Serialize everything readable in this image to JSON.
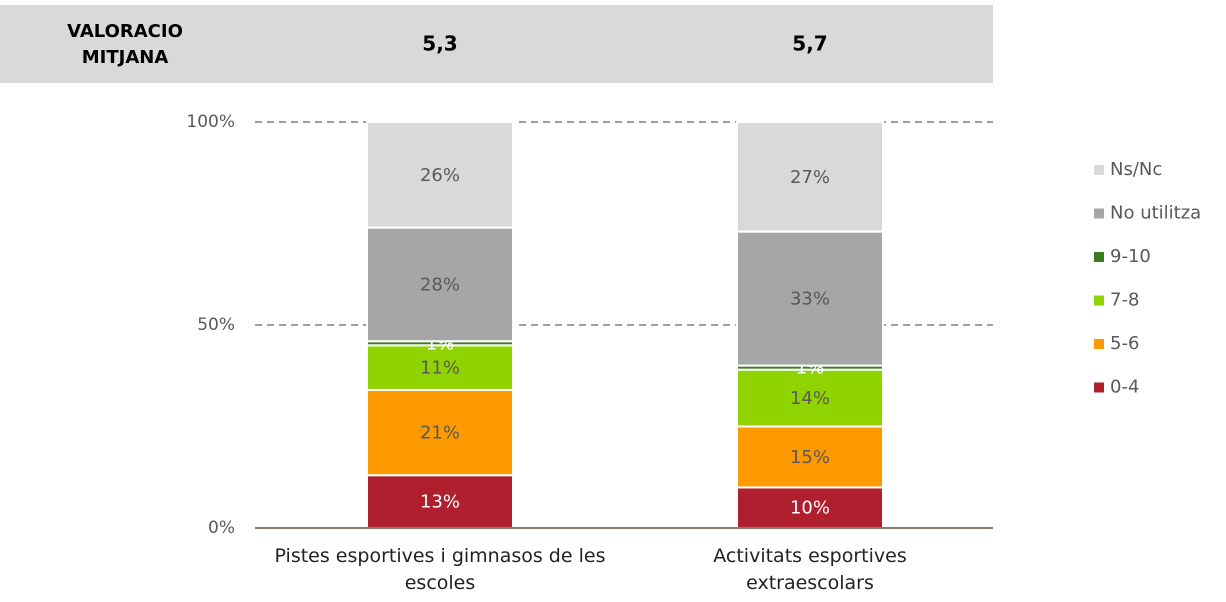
{
  "header": {
    "label": [
      "VALORACIO",
      "MITJANA"
    ],
    "values": [
      "5,3",
      "5,7"
    ]
  },
  "chart_data": {
    "type": "stacked_bar",
    "categories": [
      "Pistes esportives i gimnasos de les escoles",
      "Activitats esportives extraescolars"
    ],
    "series": [
      {
        "name": "0-4",
        "color": "#b01f2e",
        "label_color": "#ffffff",
        "values": [
          13,
          10
        ],
        "value_labels": [
          "13%",
          "10%"
        ]
      },
      {
        "name": "5-6",
        "color": "#ff9900",
        "label_color": "#595959",
        "values": [
          21,
          15
        ],
        "value_labels": [
          "21%",
          "15%"
        ]
      },
      {
        "name": "7-8",
        "color": "#8fd400",
        "label_color": "#595959",
        "values": [
          11,
          14
        ],
        "value_labels": [
          "11%",
          "14%"
        ]
      },
      {
        "name": "9-10",
        "color": "#3a7d22",
        "label_color": "#ffffff",
        "values": [
          1,
          1
        ],
        "value_labels": [
          "1%",
          "1%"
        ]
      },
      {
        "name": "No utilitza",
        "color": "#a6a6a6",
        "label_color": "#595959",
        "values": [
          28,
          33
        ],
        "value_labels": [
          "28%",
          "33%"
        ]
      },
      {
        "name": "Ns/Nc",
        "color": "#d9d9d9",
        "label_color": "#595959",
        "values": [
          26,
          27
        ],
        "value_labels": [
          "26%",
          "27%"
        ]
      }
    ],
    "ylim": [
      0,
      100
    ],
    "yticks": [
      {
        "value": 0,
        "label": "0%"
      },
      {
        "value": 50,
        "label": "50%"
      },
      {
        "value": 100,
        "label": "100%"
      }
    ],
    "grid": true,
    "legend": "right"
  }
}
